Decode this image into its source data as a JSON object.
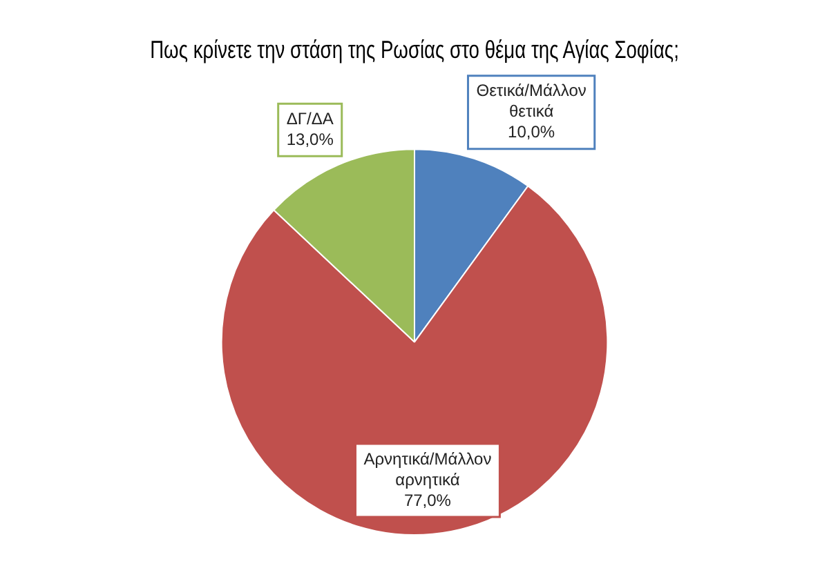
{
  "chart_data": {
    "type": "pie",
    "title": "Πως κρίνετε την στάση της Ρωσίας στο θέμα της Αγίας Σοφίας;",
    "categories": [
      "Θετικά/Μάλλον θετικά",
      "Αρνητικά/Μάλλον αρνητικά",
      "ΔΓ/ΔΑ"
    ],
    "values": [
      10,
      77,
      13
    ],
    "value_labels": [
      "10,0%",
      "77,0%",
      "13,0%"
    ],
    "colors": [
      "#4f81bd",
      "#c0504d",
      "#9bbb59"
    ],
    "legend": false
  }
}
